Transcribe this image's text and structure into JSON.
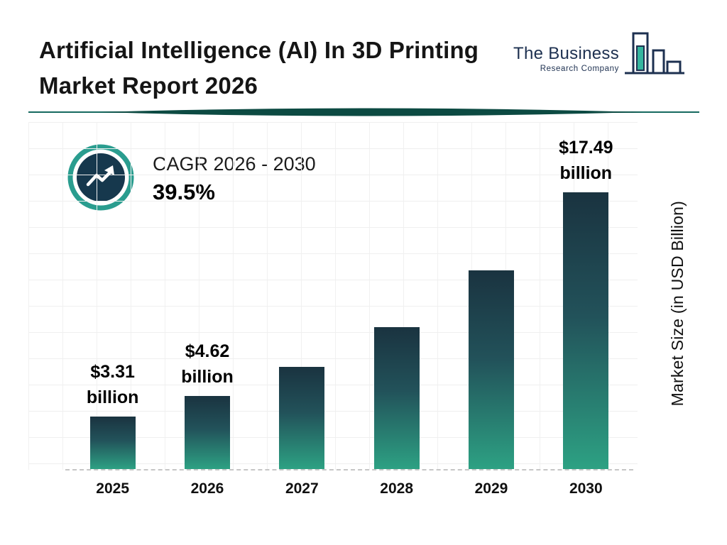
{
  "header": {
    "title_line1": "Artificial Intelligence (AI) In 3D Printing",
    "title_line2": "Market Report 2026",
    "logo": {
      "line1": "The Business",
      "line2": "Research Company"
    }
  },
  "cagr": {
    "label": "CAGR 2026 - 2030",
    "value": "39.5%"
  },
  "chart_data": {
    "type": "bar",
    "title": "Artificial Intelligence (AI) In 3D Printing Market Report 2026",
    "categories": [
      "2025",
      "2026",
      "2027",
      "2028",
      "2029",
      "2030"
    ],
    "values": [
      3.31,
      4.62,
      6.44,
      8.99,
      12.54,
      17.49
    ],
    "bar_labels": [
      {
        "value": "$3.31",
        "unit": "billion"
      },
      {
        "value": "$4.62",
        "unit": "billion"
      },
      null,
      null,
      null,
      {
        "value": "$17.49",
        "unit": "billion"
      }
    ],
    "xlabel": "",
    "ylabel": "Market Size (in USD Billion)",
    "ylim": [
      0,
      18
    ],
    "grid": true,
    "legend": "none",
    "colors": {
      "bar_top": "#1a3340",
      "bar_bottom": "#2da183",
      "accent_teal": "#2a9d8f",
      "navy": "#1d3050",
      "divider": "#0c4a42"
    }
  }
}
